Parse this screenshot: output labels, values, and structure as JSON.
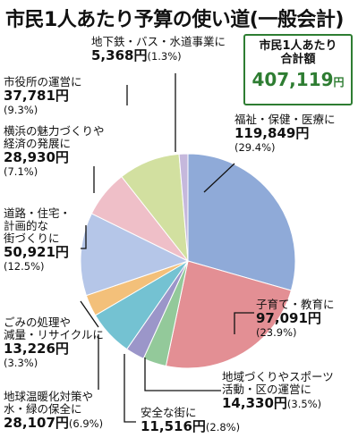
{
  "title": "市民1人あたり予算の使い道(一般会計)",
  "total": {
    "line1": "市民1人あたり",
    "line2": "合計額",
    "amount": "407,119",
    "unit": "円"
  },
  "chart_data": {
    "type": "pie",
    "unit": "円",
    "start": "top, clockwise",
    "slices": [
      {
        "label": [
          "福祉・保健・医療に"
        ],
        "value": 119849,
        "value_text": "119,849円",
        "pct": 29.4,
        "pct_text": "(29.4%)",
        "color": "#8faad8"
      },
      {
        "label": [
          "子育て・教育に"
        ],
        "value": 97091,
        "value_text": "97,091円",
        "pct": 23.9,
        "pct_text": "(23.9%)",
        "color": "#e38f94"
      },
      {
        "label": [
          "地域づくりやスポーツ",
          "活動・区の運営に"
        ],
        "value": 14330,
        "value_text": "14,330円",
        "pct": 3.5,
        "pct_text": "(3.5%)",
        "color": "#93c99a"
      },
      {
        "label": [
          "安全な街に"
        ],
        "value": 11516,
        "value_text": "11,516円",
        "pct": 2.8,
        "pct_text": "(2.8%)",
        "color": "#9b96c9"
      },
      {
        "label": [
          "地球温暖化対策や",
          "水・緑の保全に"
        ],
        "value": 28107,
        "value_text": "28,107円",
        "pct": 6.9,
        "pct_text": "(6.9%)",
        "color": "#74c2d2"
      },
      {
        "label": [
          "ごみの処理や",
          "減量・リサイクルに"
        ],
        "value": 13226,
        "value_text": "13,226円",
        "pct": 3.3,
        "pct_text": "(3.3%)",
        "color": "#f3c07a"
      },
      {
        "label": [
          "道路・住宅・",
          "計画的な",
          "街づくりに"
        ],
        "value": 50921,
        "value_text": "50,921円",
        "pct": 12.5,
        "pct_text": "(12.5%)",
        "color": "#b5c6e8"
      },
      {
        "label": [
          "横浜の魅力づくりや",
          "経済の発展に"
        ],
        "value": 28930,
        "value_text": "28,930円",
        "pct": 7.1,
        "pct_text": "(7.1%)",
        "color": "#efbfc8"
      },
      {
        "label": [
          "市役所の運営に"
        ],
        "value": 37781,
        "value_text": "37,781円",
        "pct": 9.3,
        "pct_text": "(9.3%)",
        "color": "#d2e0a0"
      },
      {
        "label": [
          "地下鉄・バス・水道事業に"
        ],
        "value": 5368,
        "value_text": "5,368円",
        "pct": 1.3,
        "pct_text": "(1.3%)",
        "color": "#c5b8dc"
      }
    ]
  }
}
